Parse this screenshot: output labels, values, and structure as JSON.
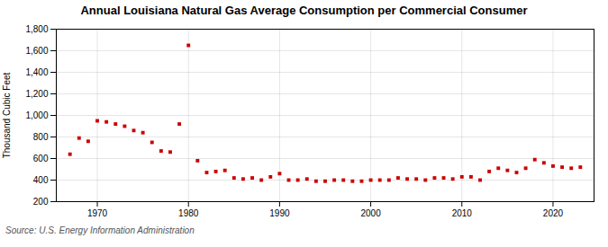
{
  "chart_data": {
    "type": "scatter",
    "title": "Annual Louisiana Natural Gas Average Consumption per Commercial Consumer",
    "ylabel": "Thousand Cubic Feet",
    "source": "Source: U.S. Energy Information Administration",
    "color": "#cc0000",
    "marker": "square",
    "x": [
      1967,
      1968,
      1969,
      1970,
      1971,
      1972,
      1973,
      1974,
      1975,
      1976,
      1977,
      1978,
      1979,
      1980,
      1981,
      1982,
      1983,
      1984,
      1985,
      1986,
      1987,
      1988,
      1989,
      1990,
      1991,
      1992,
      1993,
      1994,
      1995,
      1996,
      1997,
      1998,
      1999,
      2000,
      2001,
      2002,
      2003,
      2004,
      2005,
      2006,
      2007,
      2008,
      2009,
      2010,
      2011,
      2012,
      2013,
      2014,
      2015,
      2016,
      2017,
      2018,
      2019,
      2020,
      2021,
      2022,
      2023
    ],
    "values": [
      640,
      790,
      760,
      950,
      940,
      920,
      900,
      860,
      840,
      750,
      670,
      660,
      920,
      1650,
      580,
      470,
      480,
      490,
      420,
      410,
      420,
      400,
      430,
      460,
      400,
      400,
      410,
      390,
      390,
      400,
      400,
      390,
      390,
      400,
      400,
      400,
      420,
      410,
      410,
      400,
      420,
      420,
      410,
      430,
      430,
      400,
      480,
      510,
      490,
      470,
      510,
      590,
      560,
      530,
      520,
      510,
      520
    ],
    "xlim": [
      1965.5,
      2024.5
    ],
    "xticks": [
      1970,
      1980,
      1990,
      2000,
      2010,
      2020
    ],
    "ylim": [
      200,
      1800
    ],
    "yticks": [
      200,
      400,
      600,
      800,
      {
        "value": 1000,
        "label": "1,000"
      },
      {
        "value": 1200,
        "label": "1,200"
      },
      {
        "value": 1400,
        "label": "1,400"
      },
      {
        "value": 1600,
        "label": "1,600"
      },
      {
        "value": 1800,
        "label": "1,800"
      }
    ],
    "grid": true
  }
}
